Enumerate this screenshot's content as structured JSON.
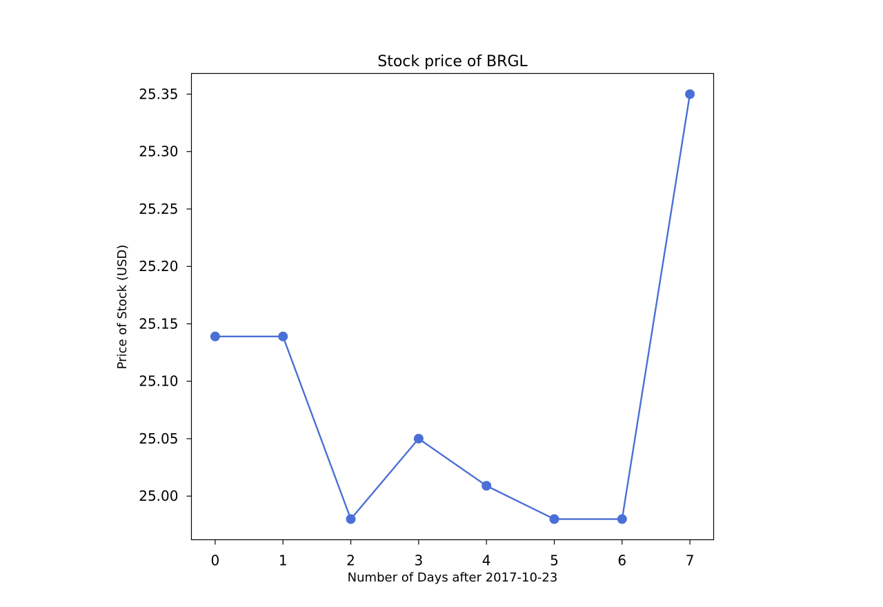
{
  "chart_data": {
    "type": "line",
    "title": "Stock price of BRGL",
    "xlabel": "Number of Days after 2017-10-23",
    "ylabel": "Price of Stock (USD)",
    "x": [
      0,
      1,
      2,
      3,
      4,
      5,
      6,
      7
    ],
    "series": [
      {
        "values": [
          25.139,
          25.139,
          24.98,
          25.05,
          25.009,
          24.98,
          24.98,
          25.35
        ]
      }
    ],
    "xlim": [
      -0.35,
      7.35
    ],
    "ylim": [
      24.962,
      25.368
    ],
    "xticks": [
      "0",
      "1",
      "2",
      "3",
      "4",
      "5",
      "6",
      "7"
    ],
    "yticks": [
      "25.00",
      "25.05",
      "25.10",
      "25.15",
      "25.20",
      "25.25",
      "25.30",
      "25.35"
    ],
    "grid": false,
    "color": "#4a6fd6"
  }
}
